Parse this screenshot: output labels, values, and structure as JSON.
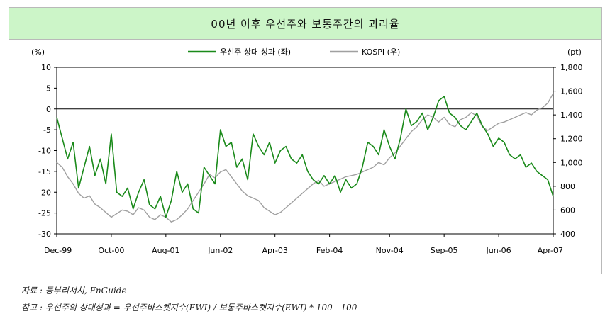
{
  "chart_data": {
    "type": "line",
    "title": "00년 이후 우선주와 보통주간의 괴리율",
    "left_unit": "(%)",
    "right_unit": "(pt)",
    "y_left": {
      "min": -30,
      "max": 10,
      "ticks": [
        "10",
        "5",
        "0",
        "-5",
        "-10",
        "-15",
        "-20",
        "-25",
        "-30"
      ]
    },
    "y_right": {
      "min": 400,
      "max": 1800,
      "ticks": [
        "1,800",
        "1,600",
        "1,400",
        "1,200",
        "1,000",
        "800",
        "600",
        "400"
      ]
    },
    "x_ticks": [
      "Dec-99",
      "Oct-00",
      "Aug-01",
      "Jun-02",
      "Apr-03",
      "Feb-04",
      "Nov-04",
      "Sep-05",
      "Jun-06",
      "Apr-07"
    ],
    "x_tick_pos": [
      0,
      10,
      20,
      30,
      40,
      50,
      61,
      71,
      81,
      91
    ],
    "x_max": 91,
    "legend_position": "top",
    "series": [
      {
        "name": "우선주 상대 성과 (좌)",
        "axis": "left",
        "color": "#1a8a1a",
        "x": [
          0,
          1,
          2,
          3,
          4,
          5,
          6,
          7,
          8,
          9,
          10,
          11,
          12,
          13,
          14,
          15,
          16,
          17,
          18,
          19,
          20,
          21,
          22,
          23,
          24,
          25,
          26,
          27,
          28,
          29,
          30,
          31,
          32,
          33,
          34,
          35,
          36,
          37,
          38,
          39,
          40,
          41,
          42,
          43,
          44,
          45,
          46,
          47,
          48,
          49,
          50,
          51,
          52,
          53,
          54,
          55,
          56,
          57,
          58,
          59,
          60,
          61,
          62,
          63,
          64,
          65,
          66,
          67,
          68,
          69,
          70,
          71,
          72,
          73,
          74,
          75,
          76,
          77,
          78,
          79,
          80,
          81,
          82,
          83,
          84,
          85,
          86,
          87,
          88,
          89,
          90,
          91
        ],
        "values": [
          -2,
          -7,
          -12,
          -8,
          -19,
          -14,
          -9,
          -16,
          -12,
          -18,
          -6,
          -20,
          -21,
          -19,
          -24,
          -20,
          -17,
          -23,
          -24,
          -21,
          -26,
          -22,
          -15,
          -20,
          -18,
          -24,
          -25,
          -14,
          -16,
          -18,
          -5,
          -9,
          -8,
          -14,
          -12,
          -17,
          -6,
          -9,
          -11,
          -8,
          -13,
          -10,
          -9,
          -12,
          -13,
          -11,
          -15,
          -17,
          -18,
          -16,
          -18,
          -16,
          -20,
          -17,
          -19,
          -18,
          -14,
          -8,
          -9,
          -11,
          -5,
          -9,
          -12,
          -7,
          0,
          -4,
          -3,
          -1,
          -5,
          -2,
          2,
          3,
          -1,
          -2,
          -4,
          -5,
          -3,
          -1,
          -4,
          -6,
          -9,
          -7,
          -8,
          -11,
          -12,
          -11,
          -14,
          -13,
          -15,
          -16,
          -17,
          -21
        ]
      },
      {
        "name": "KOSPI (우)",
        "axis": "right",
        "color": "#a0a0a0",
        "x": [
          0,
          1,
          2,
          3,
          4,
          5,
          6,
          7,
          8,
          9,
          10,
          11,
          12,
          13,
          14,
          15,
          16,
          17,
          18,
          19,
          20,
          21,
          22,
          23,
          24,
          25,
          26,
          27,
          28,
          29,
          30,
          31,
          32,
          33,
          34,
          35,
          36,
          37,
          38,
          39,
          40,
          41,
          42,
          43,
          44,
          45,
          46,
          47,
          48,
          49,
          50,
          51,
          52,
          53,
          54,
          55,
          56,
          57,
          58,
          59,
          60,
          61,
          62,
          63,
          64,
          65,
          66,
          67,
          68,
          69,
          70,
          71,
          72,
          73,
          74,
          75,
          76,
          77,
          78,
          79,
          80,
          81,
          82,
          83,
          84,
          85,
          86,
          87,
          88,
          89,
          90,
          91
        ],
        "values": [
          1000,
          960,
          880,
          820,
          740,
          700,
          720,
          650,
          620,
          580,
          540,
          570,
          600,
          590,
          560,
          620,
          600,
          540,
          520,
          560,
          540,
          500,
          520,
          560,
          610,
          680,
          750,
          820,
          900,
          870,
          920,
          940,
          880,
          820,
          760,
          720,
          700,
          680,
          620,
          590,
          560,
          580,
          620,
          660,
          700,
          740,
          780,
          820,
          850,
          800,
          820,
          840,
          860,
          880,
          890,
          900,
          920,
          940,
          960,
          1000,
          980,
          1040,
          1080,
          1140,
          1200,
          1260,
          1300,
          1360,
          1400,
          1380,
          1340,
          1380,
          1320,
          1300,
          1360,
          1380,
          1420,
          1390,
          1300,
          1270,
          1300,
          1330,
          1340,
          1360,
          1380,
          1400,
          1420,
          1400,
          1440,
          1460,
          1500,
          1580
        ]
      }
    ]
  },
  "notes": {
    "source": "자료 : 동부리서치, FnGuide",
    "reference": "참고 : 우선주의 상대성과 = 우선주바스켓지수(EWI) / 보통주바스켓지수(EWI) * 100 - 100"
  }
}
